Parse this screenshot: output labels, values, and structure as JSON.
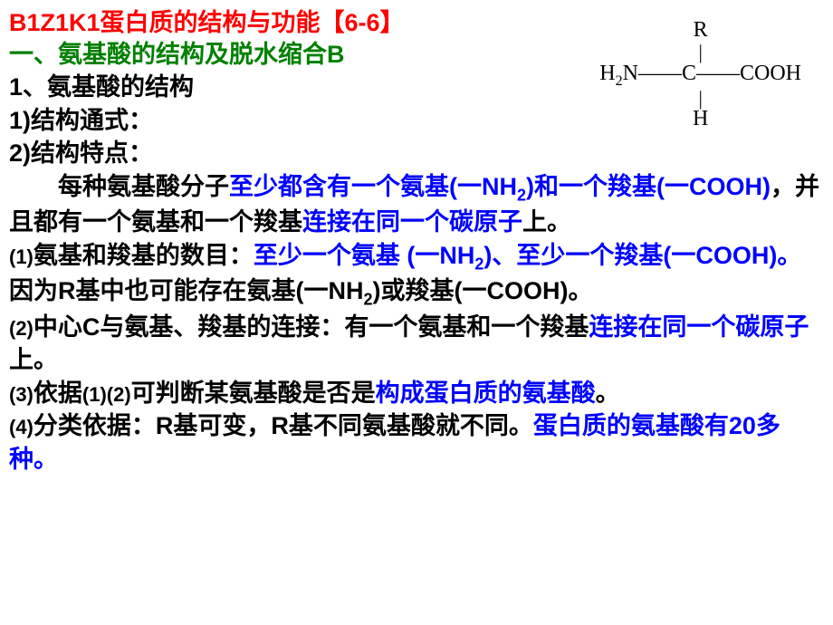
{
  "title": "B1Z1K1蛋白质的结构与功能【6-6】",
  "section_header": "一、氨基酸的结构及脱水缩合B",
  "line1": "1、氨基酸的结构",
  "line2": "1)结构通式：",
  "line3": "2)结构特点：",
  "structure": {
    "r": "R",
    "h2n": "H",
    "n2": "2",
    "n_label": "N",
    "c_label": "C",
    "cooh": "COOH",
    "h": "H"
  },
  "para1": {
    "p1": "每种氨基酸分子",
    "p2": "至少都含有一个氨基(一NH",
    "p2_sub": "2",
    "p2_end": ")和一个",
    "p3": "羧基(一COOH)",
    "p4": "，并且都有一个氨基和一个羧基",
    "p5": "连接在同一个碳原子",
    "p6": "上。"
  },
  "item1": {
    "num": "(1)",
    "p1": "氨基和羧基的数目：",
    "p2": "至少一个氨基 (一NH",
    "p2_sub": "2",
    "p2_end": ")、至少一个",
    "p3": "羧基(一COOH)。",
    "p4": "因为R基中也可能存在氨基(一NH",
    "p4_sub": "2",
    "p4_end": ")或羧基(一COOH)。"
  },
  "item2": {
    "num": "(2)",
    "p1": "中心C与氨基、羧基的连接：有一个氨基和一个羧基",
    "p2": "连接在同一个碳原子",
    "p3": "上。"
  },
  "item3": {
    "num": "(3)",
    "p1": "依据",
    "p1_small1": "(1)",
    "p1_small2": "(2)",
    "p2": "可判断某氨基酸是否是",
    "p3": "构成蛋白质的氨基酸",
    "p4": "。"
  },
  "item4": {
    "num": "(4)",
    "p1": "分类依据：R基可变，R基不同氨基酸就不同。",
    "p2": "蛋白质的氨基酸有20多种",
    "p3": "。"
  }
}
